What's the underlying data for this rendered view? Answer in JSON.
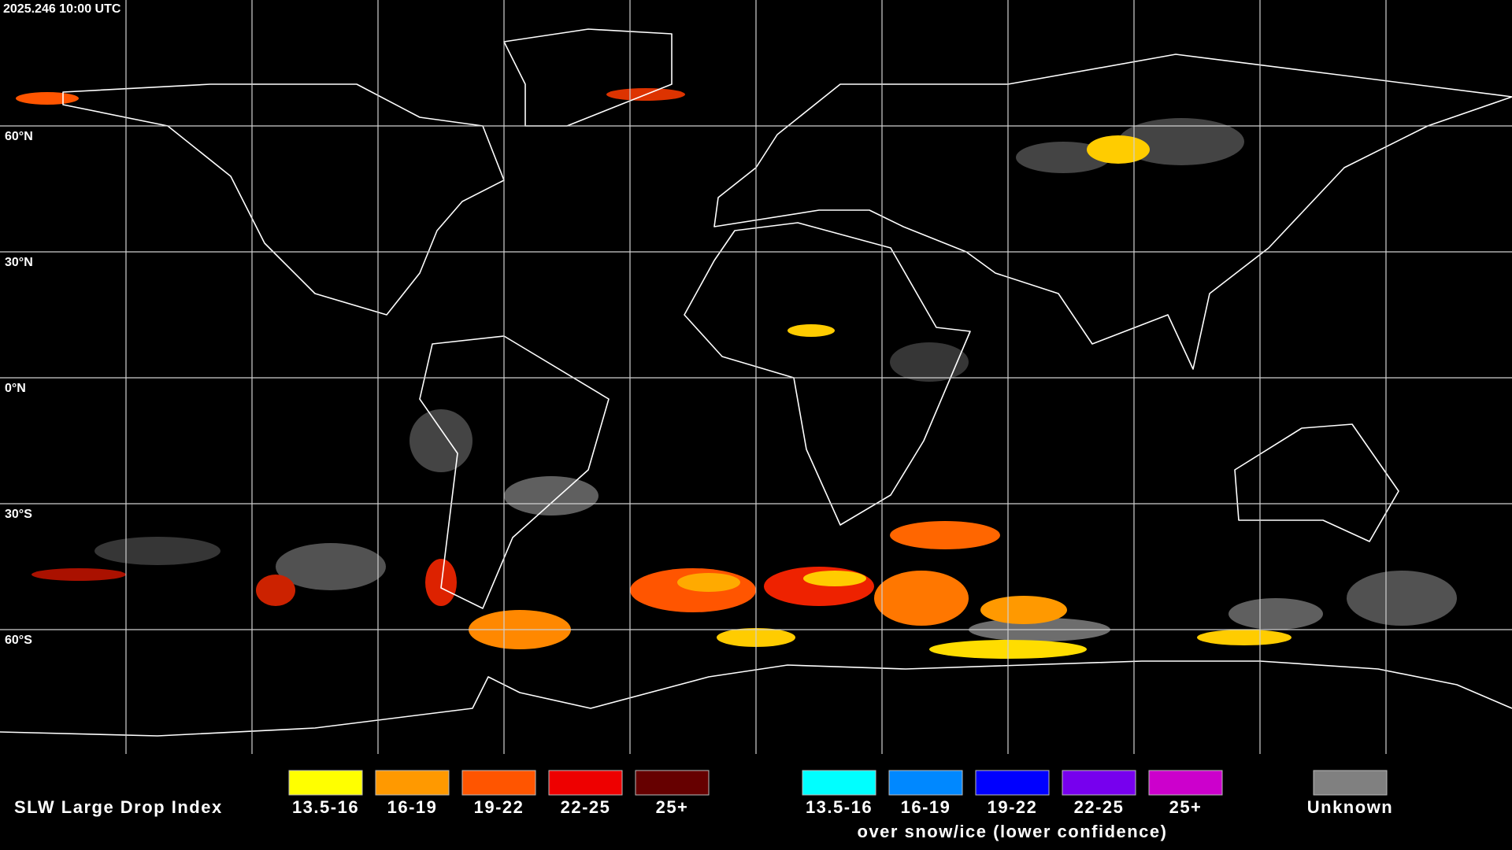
{
  "header": {
    "timestamp": "2025.246 10:00 UTC"
  },
  "map": {
    "latitude_labels": [
      "60°N",
      "30°N",
      "0°N",
      "30°S",
      "60°S"
    ]
  },
  "legend": {
    "title": "SLW Large Drop Index",
    "groups": [
      {
        "items": [
          {
            "label": "13.5-16",
            "color": "#ffff00"
          },
          {
            "label": "16-19",
            "color": "#ff9900"
          },
          {
            "label": "19-22",
            "color": "#ff5500"
          },
          {
            "label": "22-25",
            "color": "#ee0000"
          },
          {
            "label": "25+",
            "color": "#660000"
          }
        ]
      },
      {
        "items": [
          {
            "label": "13.5-16",
            "color": "#00ffff"
          },
          {
            "label": "16-19",
            "color": "#0088ff"
          },
          {
            "label": "19-22",
            "color": "#0000ff"
          },
          {
            "label": "22-25",
            "color": "#7700ee"
          },
          {
            "label": "25+",
            "color": "#cc00cc"
          }
        ],
        "caption": "over snow/ice (lower confidence)"
      },
      {
        "items": [
          {
            "label": "Unknown",
            "color": "#808080"
          }
        ]
      }
    ]
  }
}
